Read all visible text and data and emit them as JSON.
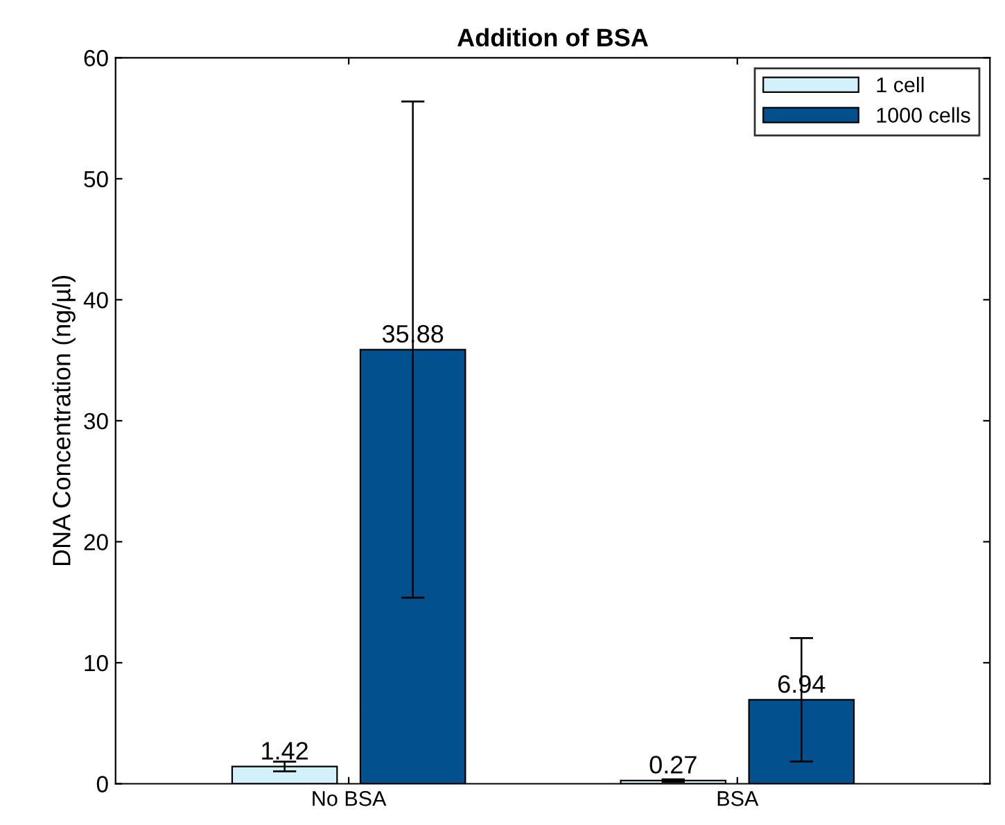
{
  "chart_data": {
    "type": "bar",
    "title": "Addition of BSA",
    "ylabel": "DNA Concentration (ng/µl)",
    "categories": [
      "No BSA",
      "BSA"
    ],
    "series": [
      {
        "name": "1 cell",
        "color": "#d2f1fb",
        "values": [
          1.42,
          0.27
        ],
        "errors": [
          0.4,
          0.1
        ]
      },
      {
        "name": "1000 cells",
        "color": "#03508e",
        "values": [
          35.88,
          6.94
        ],
        "errors": [
          20.5,
          5.1
        ]
      }
    ],
    "ylim": [
      0,
      60
    ],
    "yticks": [
      0,
      10,
      20,
      30,
      40,
      50,
      60
    ],
    "grid": false,
    "legend": "top right",
    "data_labels": true
  }
}
